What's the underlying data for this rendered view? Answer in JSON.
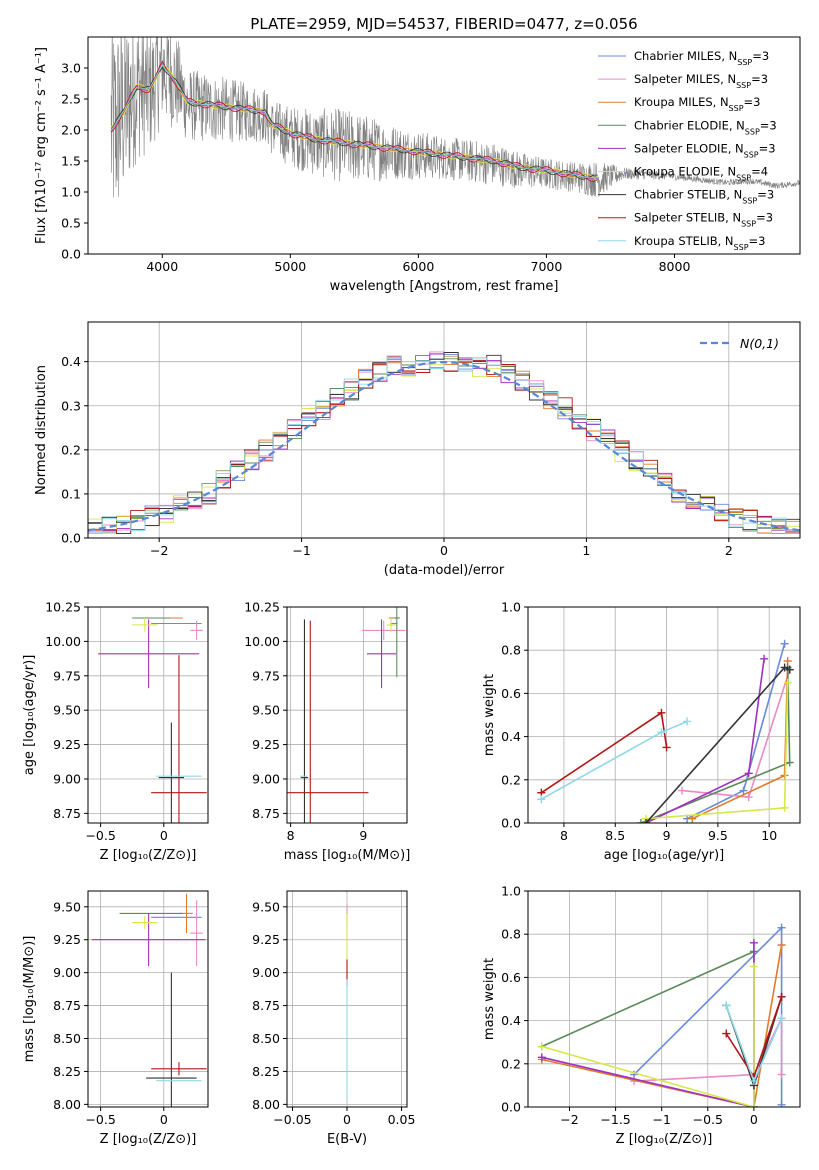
{
  "figure": {
    "title": "PLATE=2959, MJD=54537, FIBERID=0477, z=0.056"
  },
  "chart_data": [
    {
      "id": "spectrum",
      "type": "line",
      "title": "PLATE=2959, MJD=54537, FIBERID=0477, z=0.056",
      "xlabel": "wavelength [Angstrom, rest frame]",
      "ylabel": "Flux [fλ10⁻¹⁷ erg cm⁻² s⁻¹ A⁻¹]",
      "xlim": [
        3420,
        8980
      ],
      "ylim": [
        0,
        3.5
      ],
      "xticks": [
        4000,
        5000,
        6000,
        7000,
        8000
      ],
      "yticks": [
        0.0,
        0.5,
        1.0,
        1.5,
        2.0,
        2.5,
        3.0
      ],
      "grid": false,
      "legend_position": "top-right",
      "observed": {
        "color": "#808080",
        "x": [
          3600,
          3700,
          3800,
          3900,
          4000,
          4100,
          4200,
          4400,
          4600,
          4800,
          4850,
          5000,
          5200,
          5400,
          5600,
          5800,
          6000,
          6200,
          6400,
          6600,
          6800,
          7000,
          7200,
          7400,
          7600,
          7800,
          8000,
          8200,
          8400,
          8600,
          8800,
          8980
        ],
        "y": [
          2.0,
          2.3,
          2.7,
          2.6,
          3.0,
          2.8,
          2.4,
          2.35,
          2.3,
          2.25,
          2.05,
          1.9,
          1.8,
          1.75,
          1.7,
          1.65,
          1.6,
          1.55,
          1.5,
          1.45,
          1.35,
          1.3,
          1.25,
          1.2,
          1.3,
          1.28,
          1.25,
          1.2,
          1.15,
          1.18,
          1.1,
          1.15
        ],
        "noise": [
          1.8,
          1.5,
          1.2,
          1.0,
          0.9,
          0.8,
          0.6,
          0.55,
          0.5,
          0.45,
          0.45,
          0.5,
          0.55,
          0.6,
          0.55,
          0.45,
          0.4,
          0.35,
          0.35,
          0.35,
          0.3,
          0.25,
          0.25,
          0.3,
          0.1,
          0.08,
          0.06,
          0.05,
          0.05,
          0.05,
          0.05,
          0.05
        ]
      },
      "model_x": [
        3600,
        3700,
        3800,
        3900,
        4000,
        4100,
        4200,
        4400,
        4600,
        4800,
        4850,
        5000,
        5200,
        5400,
        5600,
        5800,
        6000,
        6200,
        6400,
        6600,
        6800,
        7000,
        7200,
        7400
      ],
      "model_y": [
        2.0,
        2.3,
        2.7,
        2.65,
        3.05,
        2.8,
        2.45,
        2.4,
        2.35,
        2.3,
        2.1,
        1.95,
        1.85,
        1.8,
        1.75,
        1.7,
        1.65,
        1.6,
        1.55,
        1.5,
        1.4,
        1.35,
        1.28,
        1.22
      ],
      "series": [
        {
          "name": "Chabrier MILES, N",
          "sub": "SSP",
          "suffix": "=3",
          "color": "#6a89d8",
          "offset": 0.0
        },
        {
          "name": "Salpeter MILES, N",
          "sub": "SSP",
          "suffix": "=3",
          "color": "#e88bc7",
          "offset": 0.04
        },
        {
          "name": "Kroupa MILES, N",
          "sub": "SSP",
          "suffix": "=3",
          "color": "#e07b2a",
          "offset": -0.03
        },
        {
          "name": "Chabrier ELODIE, N",
          "sub": "SSP",
          "suffix": "=3",
          "color": "#5a8a5a",
          "offset": 0.02
        },
        {
          "name": "Salpeter ELODIE, N",
          "sub": "SSP",
          "suffix": "=3",
          "color": "#a030c0",
          "offset": -0.02
        },
        {
          "name": "Kroupa ELODIE, N",
          "sub": "SSP",
          "suffix": "=4",
          "color": "#d4e84a",
          "offset": 0.05
        },
        {
          "name": "Chabrier STELIB, N",
          "sub": "SSP",
          "suffix": "=3",
          "color": "#333333",
          "offset": -0.05
        },
        {
          "name": "Salpeter STELIB, N",
          "sub": "SSP",
          "suffix": "=3",
          "color": "#b01818",
          "offset": 0.06
        },
        {
          "name": "Kroupa STELIB, N",
          "sub": "SSP",
          "suffix": "=3",
          "color": "#8fd8e8",
          "offset": 0.01
        }
      ]
    },
    {
      "id": "residuals",
      "type": "histogram",
      "xlabel": "(data-model)/error",
      "ylabel": "Normed distribution",
      "xlim": [
        -2.5,
        2.5
      ],
      "ylim": [
        0,
        0.49
      ],
      "xticks": [
        -2,
        -1,
        0,
        1,
        2
      ],
      "yticks": [
        0.0,
        0.1,
        0.2,
        0.3,
        0.4
      ],
      "grid": true,
      "legend_position": "top-right",
      "gaussian": {
        "label": "N(0,1)",
        "color": "#5588d8"
      },
      "bin_width": 0.1,
      "series_colors": [
        "#6a89d8",
        "#e88bc7",
        "#e07b2a",
        "#5a8a5a",
        "#a030c0",
        "#d4e84a",
        "#333333",
        "#b01818",
        "#8fd8e8"
      ]
    },
    {
      "id": "age-vs-Z",
      "type": "errorbar",
      "xlabel": "Z [log₁₀(Z/Z⊙)]",
      "ylabel": "age  [log₁₀(age/yr)]",
      "xlim": [
        -0.6,
        0.35
      ],
      "ylim": [
        8.68,
        10.25
      ],
      "xticks": [
        -0.5,
        0.0
      ],
      "yticks": [
        8.75,
        9.0,
        9.25,
        9.5,
        9.75,
        10.0,
        10.25
      ],
      "grid": true,
      "points": [
        {
          "x": 0.1,
          "y": 10.13,
          "xerr": 0.2,
          "yerr": 0.0,
          "color": "#6a89d8"
        },
        {
          "x": 0.26,
          "y": 10.08,
          "xerr": 0.05,
          "yerr": 0.07,
          "color": "#e88bc7"
        },
        {
          "x": -0.05,
          "y": 10.17,
          "xerr": 0.2,
          "yerr": 0.0,
          "color": "#e07b2a"
        },
        {
          "x": -0.1,
          "y": 10.17,
          "xerr": 0.15,
          "yerr": 0.0,
          "color": "#5a8a5a"
        },
        {
          "x": -0.12,
          "y": 9.91,
          "xerr": 0.4,
          "yerr": 0.25,
          "color": "#a030c0"
        },
        {
          "x": -0.15,
          "y": 10.12,
          "xerr": 0.1,
          "yerr": 0.05,
          "color": "#d4e84a"
        },
        {
          "x": 0.06,
          "y": 9.01,
          "xerr": 0.1,
          "yerr": 0.4,
          "color": "#333333"
        },
        {
          "x": 0.12,
          "y": 8.9,
          "xerr": 0.22,
          "yerr": 1.0,
          "color": "#b01818"
        },
        {
          "x": 0.12,
          "y": 9.02,
          "xerr": 0.18,
          "yerr": 0.0,
          "color": "#8fd8e8"
        }
      ]
    },
    {
      "id": "age-vs-mass",
      "type": "errorbar",
      "xlabel": "mass [log₁₀(M/M⊙)]",
      "ylabel": "",
      "xlim": [
        7.95,
        9.6
      ],
      "ylim": [
        8.68,
        10.25
      ],
      "xticks": [
        8,
        9
      ],
      "yticks": [
        8.75,
        9.0,
        9.25,
        9.5,
        9.75,
        10.0,
        10.25
      ],
      "grid": true,
      "points": [
        {
          "x": 9.42,
          "y": 10.13,
          "xerr": 0.05,
          "yerr": 0.0,
          "color": "#6a89d8"
        },
        {
          "x": 9.28,
          "y": 10.08,
          "xerr": 0.3,
          "yerr": 0.07,
          "color": "#e88bc7"
        },
        {
          "x": 9.4,
          "y": 10.17,
          "xerr": 0.05,
          "yerr": 0.0,
          "color": "#e07b2a"
        },
        {
          "x": 9.46,
          "y": 10.17,
          "xerr": 0.04,
          "yerr": 0.43,
          "color": "#5a8a5a"
        },
        {
          "x": 9.25,
          "y": 9.91,
          "xerr": 0.2,
          "yerr": 0.25,
          "color": "#a030c0"
        },
        {
          "x": 9.38,
          "y": 10.12,
          "xerr": 0.06,
          "yerr": 0.05,
          "color": "#d4e84a"
        },
        {
          "x": 8.19,
          "y": 9.01,
          "xerr": 0.05,
          "yerr": 1.15,
          "color": "#333333"
        },
        {
          "x": 8.27,
          "y": 8.9,
          "xerr": 0.8,
          "yerr": 1.25,
          "color": "#b01818"
        },
        {
          "x": 8.18,
          "y": 9.02,
          "xerr": 0.05,
          "yerr": 0.0,
          "color": "#8fd8e8"
        }
      ]
    },
    {
      "id": "weight-vs-age",
      "type": "line",
      "xlabel": "age  [log₁₀(age/yr)]",
      "ylabel": "mass weight",
      "xlim": [
        7.65,
        10.3
      ],
      "ylim": [
        0,
        1.0
      ],
      "xticks": [
        8.0,
        8.5,
        9.0,
        9.5,
        10.0
      ],
      "yticks": [
        0.0,
        0.2,
        0.4,
        0.6,
        0.8,
        1.0
      ],
      "grid": true,
      "series": [
        {
          "color": "#6a89d8",
          "x": [
            10.15,
            9.75,
            9.2
          ],
          "y": [
            0.83,
            0.15,
            0.02
          ]
        },
        {
          "color": "#e88bc7",
          "x": [
            10.2,
            9.8,
            9.15
          ],
          "y": [
            0.71,
            0.12,
            0.15
          ]
        },
        {
          "color": "#e07b2a",
          "x": [
            10.18,
            10.15,
            9.25
          ],
          "y": [
            0.75,
            0.22,
            0.02
          ]
        },
        {
          "color": "#5a8a5a",
          "x": [
            10.18,
            10.2,
            8.75
          ],
          "y": [
            0.72,
            0.28,
            0.0
          ]
        },
        {
          "color": "#a030c0",
          "x": [
            9.95,
            9.8,
            8.8
          ],
          "y": [
            0.76,
            0.23,
            0.0
          ]
        },
        {
          "color": "#d4e84a",
          "x": [
            10.18,
            10.15,
            8.8,
            8.8
          ],
          "y": [
            0.65,
            0.07,
            0.02,
            0.0
          ]
        },
        {
          "color": "#333333",
          "x": [
            10.2,
            10.15,
            8.8
          ],
          "y": [
            0.71,
            0.72,
            0.0
          ]
        },
        {
          "color": "#b01818",
          "x": [
            9.0,
            8.95,
            7.78
          ],
          "y": [
            0.35,
            0.51,
            0.14
          ]
        },
        {
          "color": "#8fd8e8",
          "x": [
            9.2,
            8.95,
            7.78
          ],
          "y": [
            0.47,
            0.42,
            0.11
          ]
        }
      ]
    },
    {
      "id": "mass-vs-Z",
      "type": "errorbar",
      "xlabel": "Z [log₁₀(Z/Z⊙)]",
      "ylabel": "mass [log₁₀(M/M⊙)]",
      "xlim": [
        -0.6,
        0.35
      ],
      "ylim": [
        7.98,
        9.62
      ],
      "xticks": [
        -0.5,
        0.0
      ],
      "yticks": [
        8.0,
        8.25,
        8.5,
        8.75,
        9.0,
        9.25,
        9.5
      ],
      "grid": true,
      "points": [
        {
          "x": 0.1,
          "y": 9.42,
          "xerr": 0.2,
          "yerr": 0.0,
          "color": "#6a89d8"
        },
        {
          "x": 0.26,
          "y": 9.3,
          "xerr": 0.05,
          "yerr": 0.25,
          "color": "#e88bc7"
        },
        {
          "x": 0.18,
          "y": 9.45,
          "xerr": 0.05,
          "yerr": 0.15,
          "color": "#e07b2a"
        },
        {
          "x": -0.1,
          "y": 9.45,
          "xerr": 0.25,
          "yerr": 0.0,
          "color": "#5a8a5a"
        },
        {
          "x": -0.12,
          "y": 9.25,
          "xerr": 0.45,
          "yerr": 0.2,
          "color": "#a030c0"
        },
        {
          "x": -0.15,
          "y": 9.38,
          "xerr": 0.1,
          "yerr": 0.05,
          "color": "#d4e84a"
        },
        {
          "x": 0.06,
          "y": 8.2,
          "xerr": 0.2,
          "yerr": 0.8,
          "color": "#333333"
        },
        {
          "x": 0.12,
          "y": 8.27,
          "xerr": 0.22,
          "yerr": 0.05,
          "color": "#b01818"
        },
        {
          "x": 0.12,
          "y": 8.18,
          "xerr": 0.18,
          "yerr": 0.0,
          "color": "#8fd8e8"
        }
      ]
    },
    {
      "id": "mass-vs-ebv",
      "type": "errorbar",
      "xlabel": "E(B-V)",
      "ylabel": "",
      "xlim": [
        -0.055,
        0.055
      ],
      "ylim": [
        7.98,
        9.62
      ],
      "xticks": [
        -0.05,
        0.0,
        0.05
      ],
      "yticks": [
        8.0,
        8.25,
        8.5,
        8.75,
        9.0,
        9.25,
        9.5
      ],
      "grid": true,
      "points": [
        {
          "x": 0.0,
          "y": 9.42,
          "xerr": 0.0,
          "yerr": 0.1,
          "color": "#e88bc7"
        },
        {
          "x": 0.0,
          "y": 9.2,
          "xerr": 0.0,
          "yerr": 0.25,
          "color": "#d4e84a"
        },
        {
          "x": 0.0,
          "y": 9.0,
          "xerr": 0.0,
          "yerr": 0.1,
          "color": "#b01818"
        },
        {
          "x": 0.0,
          "y": 8.5,
          "xerr": 0.0,
          "yerr": 0.45,
          "color": "#8fd8e8"
        }
      ]
    },
    {
      "id": "weight-vs-Z",
      "type": "line",
      "xlabel": "Z [log₁₀(Z/Z⊙)]",
      "ylabel": "mass weight",
      "xlim": [
        -2.45,
        0.5
      ],
      "ylim": [
        0,
        1.0
      ],
      "xticks": [
        -2.0,
        -1.5,
        -1.0,
        -0.5,
        0.0
      ],
      "yticks": [
        0.0,
        0.2,
        0.4,
        0.6,
        0.8,
        1.0
      ],
      "grid": true,
      "series": [
        {
          "color": "#6a89d8",
          "x": [
            0.3,
            0.3,
            -1.3
          ],
          "y": [
            0.01,
            0.83,
            0.15
          ]
        },
        {
          "color": "#e88bc7",
          "x": [
            0.3,
            0.3,
            0.0,
            -1.3
          ],
          "y": [
            0.15,
            0.41,
            0.15,
            0.12
          ]
        },
        {
          "color": "#e07b2a",
          "x": [
            0.3,
            0.0,
            -2.3
          ],
          "y": [
            0.75,
            0.0,
            0.22
          ]
        },
        {
          "color": "#5a8a5a",
          "x": [
            0.0,
            0.0,
            -2.3
          ],
          "y": [
            0.0,
            0.72,
            0.28
          ]
        },
        {
          "color": "#a030c0",
          "x": [
            0.0,
            0.0,
            -2.3
          ],
          "y": [
            0.76,
            0.0,
            0.23
          ]
        },
        {
          "color": "#d4e84a",
          "x": [
            0.0,
            0.0,
            -2.3
          ],
          "y": [
            0.65,
            0.0,
            0.28
          ]
        },
        {
          "color": "#333333",
          "x": [
            0.3,
            0.0,
            -0.3
          ],
          "y": [
            0.51,
            0.1,
            0.47
          ]
        },
        {
          "color": "#b01818",
          "x": [
            0.3,
            0.0,
            -0.3
          ],
          "y": [
            0.51,
            0.14,
            0.34
          ]
        },
        {
          "color": "#8fd8e8",
          "x": [
            0.3,
            0.0,
            -0.3
          ],
          "y": [
            0.41,
            0.12,
            0.47
          ]
        }
      ]
    }
  ]
}
